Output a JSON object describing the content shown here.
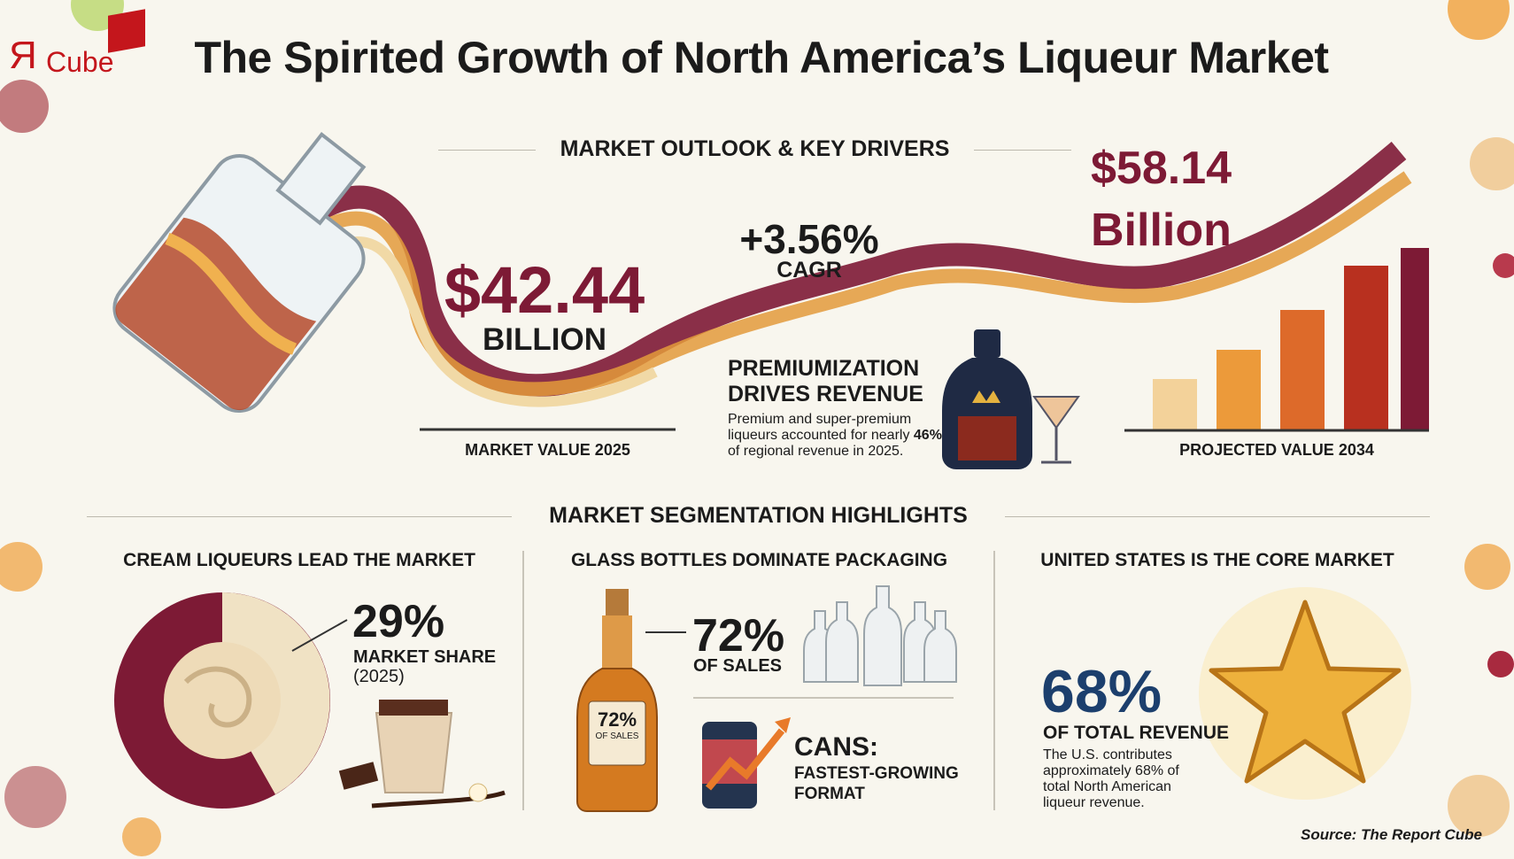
{
  "logo": {
    "text_r": "Я",
    "text_cube": "Cube"
  },
  "title": "The Spirited Growth of North America’s Liqueur Market",
  "outlook": {
    "heading": "MARKET OUTLOOK & KEY DRIVERS",
    "value_2025": "$42.44",
    "value_2025_unit": "BILLION",
    "value_2025_label": "MARKET VALUE 2025",
    "cagr": "+3.56%",
    "cagr_label": "CAGR",
    "value_2034": "$58.14",
    "value_2034_unit": "Billion",
    "value_2034_label": "PROJECTED VALUE 2034",
    "premium_title_1": "PREMIUMIZATION",
    "premium_title_2": "DRIVES REVENUE",
    "premium_text_1": "Premium and super-premium",
    "premium_text_2a": "liqueurs accounted for nearly ",
    "premium_text_2b": "46%",
    "premium_text_3": "of regional revenue in 2025."
  },
  "segmentation": {
    "heading": "MARKET SEGMENTATION HIGHLIGHTS",
    "cream": {
      "heading": "CREAM LIQUEURS LEAD THE MARKET",
      "value": "29%",
      "label": "MARKET SHARE",
      "year": "(2025)"
    },
    "glass": {
      "heading": "GLASS BOTTLES DOMINATE PACKAGING",
      "value": "72%",
      "label": "OF SALES",
      "bottle_label_value": "72%",
      "bottle_label_text": "OF SALES",
      "cans_title": "CANS:",
      "cans_sub_1": "FASTEST-GROWING",
      "cans_sub_2": "FORMAT"
    },
    "us": {
      "heading": "UNITED STATES IS THE CORE MARKET",
      "value": "68%",
      "label": "OF TOTAL REVENUE",
      "text_1": "The U.S. contributes",
      "text_2": "approximately 68% of",
      "text_3": "total North American",
      "text_4": "liqueur revenue."
    }
  },
  "source": "Source: The Report Cube",
  "colors": {
    "maroon": "#7d1a35",
    "navy": "#1c3f6d",
    "gold": "#e8a33a",
    "background": "#f8f6ee"
  }
}
